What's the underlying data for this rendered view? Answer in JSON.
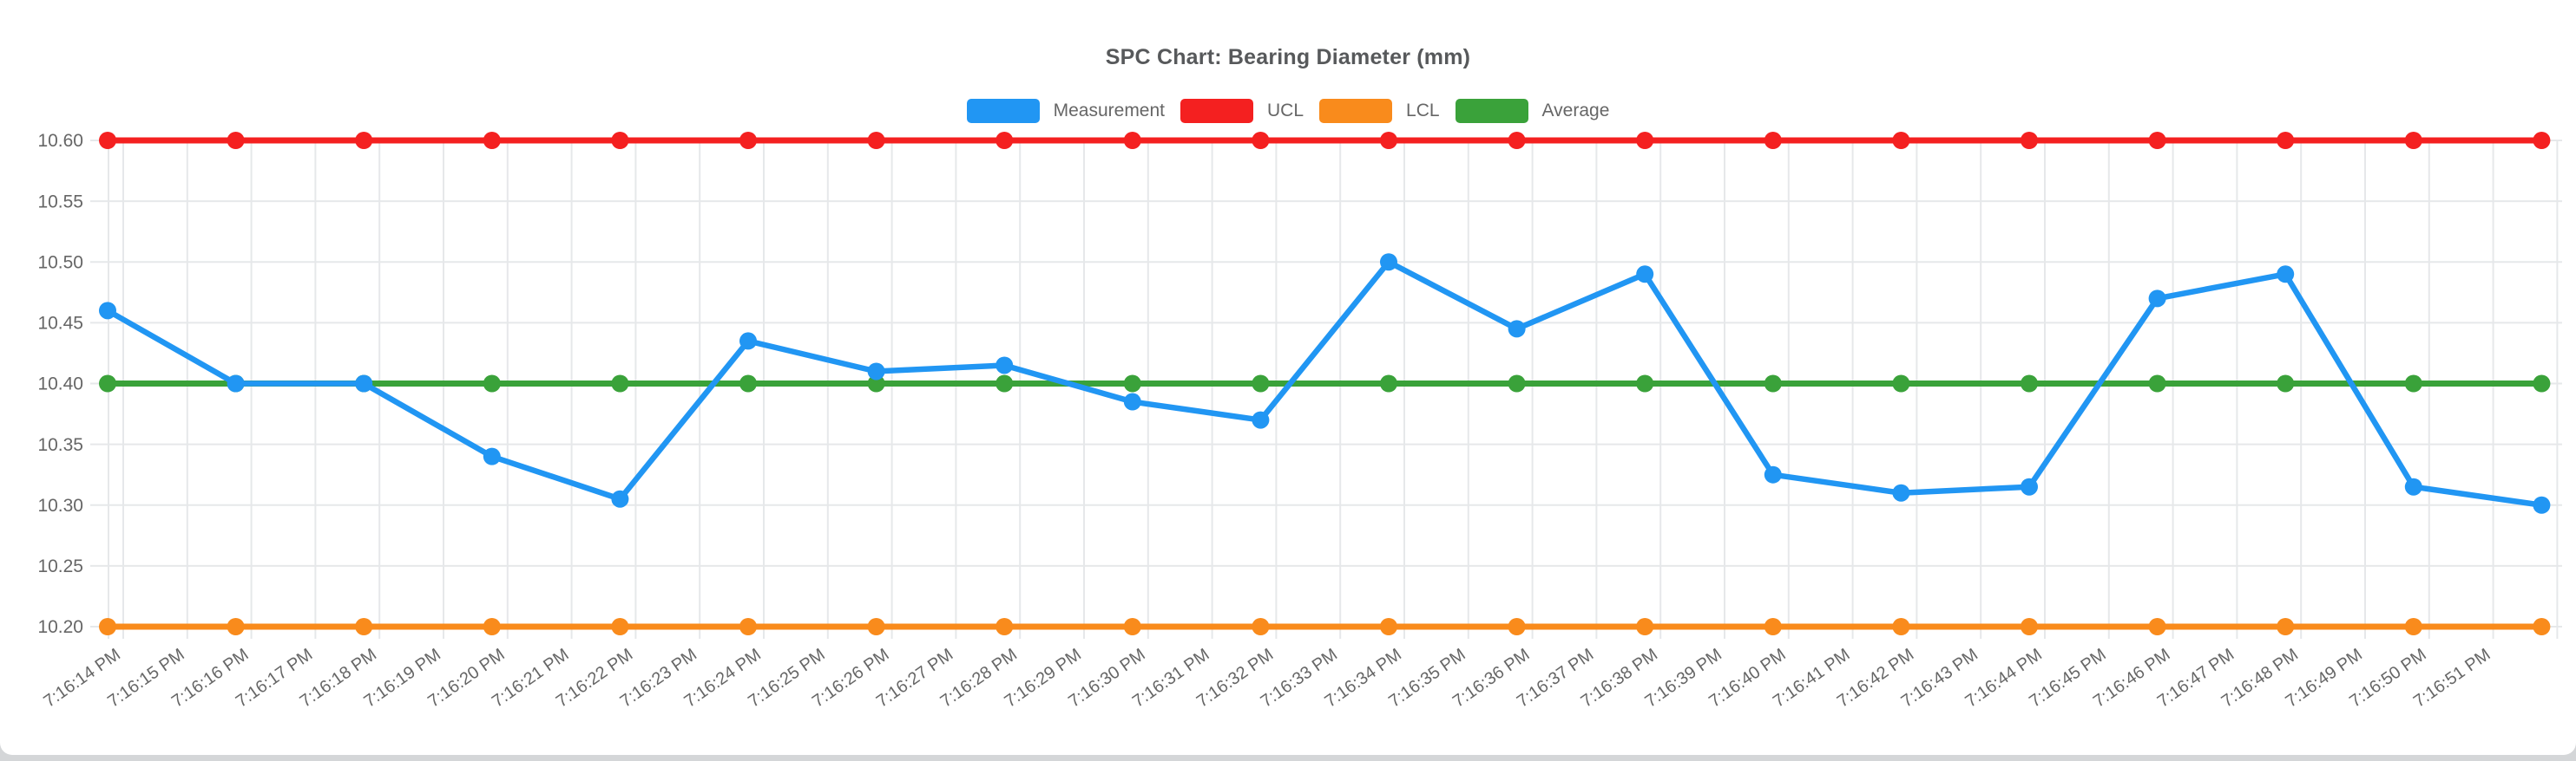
{
  "page": {
    "card_background": "#ffffff",
    "page_background": "#d4d6d8"
  },
  "chart_data": {
    "type": "line",
    "title": "SPC Chart: Bearing Diameter (mm)",
    "legend_position": "top",
    "grid": true,
    "ylim": [
      10.2,
      10.6
    ],
    "y_tick_step": 0.05,
    "y_tick_labels": [
      "10.60",
      "10.55",
      "10.50",
      "10.45",
      "10.40",
      "10.35",
      "10.30",
      "10.25",
      "10.20"
    ],
    "x_labels": [
      "7:16:14 PM",
      "7:16:15 PM",
      "7:16:16 PM",
      "7:16:17 PM",
      "7:16:18 PM",
      "7:16:19 PM",
      "7:16:20 PM",
      "7:16:21 PM",
      "7:16:22 PM",
      "7:16:23 PM",
      "7:16:24 PM",
      "7:16:25 PM",
      "7:16:26 PM",
      "7:16:27 PM",
      "7:16:28 PM",
      "7:16:29 PM",
      "7:16:30 PM",
      "7:16:31 PM",
      "7:16:32 PM",
      "7:16:33 PM",
      "7:16:34 PM",
      "7:16:35 PM",
      "7:16:36 PM",
      "7:16:37 PM",
      "7:16:38 PM",
      "7:16:39 PM",
      "7:16:40 PM",
      "7:16:41 PM",
      "7:16:42 PM",
      "7:16:43 PM",
      "7:16:44 PM",
      "7:16:45 PM",
      "7:16:46 PM",
      "7:16:47 PM",
      "7:16:48 PM",
      "7:16:49 PM",
      "7:16:50 PM",
      "7:16:51 PM"
    ],
    "x_label_rotation_deg": -35,
    "points_every_n_labels": 2,
    "series": [
      {
        "name": "Measurement",
        "color": "#2196f3",
        "kind": "data",
        "values": [
          10.46,
          10.4,
          10.4,
          10.34,
          10.305,
          10.435,
          10.41,
          10.415,
          10.385,
          10.37,
          10.5,
          10.445,
          10.49,
          10.325,
          10.31,
          10.315,
          10.47,
          10.49,
          10.315,
          10.3
        ]
      },
      {
        "name": "UCL",
        "color": "#f42020",
        "kind": "constant",
        "value": 10.6
      },
      {
        "name": "LCL",
        "color": "#f98b1c",
        "kind": "constant",
        "value": 10.2
      },
      {
        "name": "Average",
        "color": "#3aa23a",
        "kind": "constant",
        "value": 10.4
      }
    ],
    "style": {
      "grid_color": "#e6e8ea",
      "axis_text_color": "#666666",
      "title_color": "#57595b"
    }
  }
}
